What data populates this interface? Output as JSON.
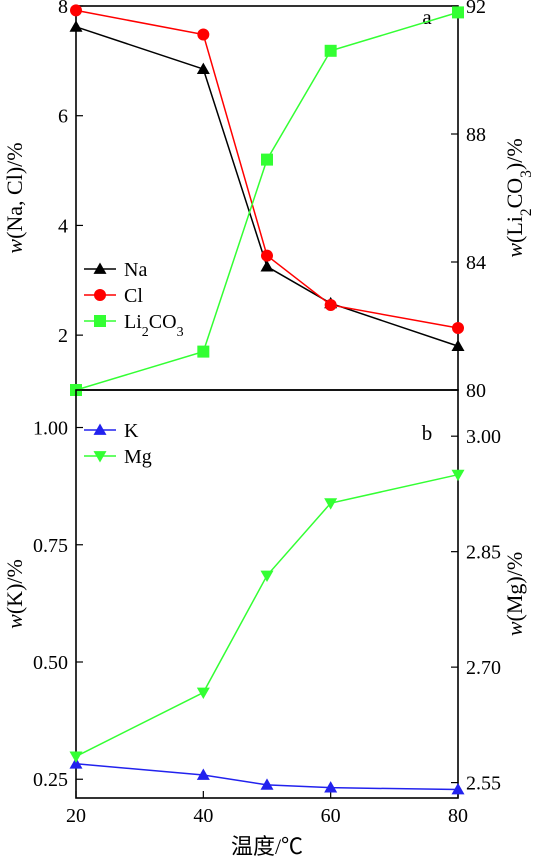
{
  "chart_data": [
    {
      "panel_label": "a",
      "type": "line",
      "x": [
        20,
        40,
        50,
        60,
        80
      ],
      "xlim": [
        20,
        80
      ],
      "ylabel_left": "w(Na, Cl)/%",
      "ylabel_right": "w(Li2CO3)/%",
      "ylim_left": [
        1.0,
        8.0
      ],
      "ylim_right": [
        80,
        92
      ],
      "yticks_left": [
        2,
        4,
        6,
        8
      ],
      "yticks_right": [
        80,
        84,
        88,
        92
      ],
      "series": [
        {
          "name": "Na",
          "axis": "left",
          "marker": "triangle-up",
          "color": "#000000",
          "values": [
            7.62,
            6.85,
            3.25,
            2.58,
            1.8
          ]
        },
        {
          "name": "Cl",
          "axis": "left",
          "marker": "circle",
          "color": "#ff0000",
          "values": [
            7.92,
            7.48,
            3.45,
            2.55,
            2.13
          ]
        },
        {
          "name": "Li2CO3",
          "axis": "right",
          "marker": "square",
          "color": "#33ff33",
          "values": [
            80.0,
            81.2,
            87.2,
            90.6,
            91.8
          ]
        }
      ],
      "legend_placement": "bottom-left"
    },
    {
      "panel_label": "b",
      "type": "line",
      "x": [
        20,
        40,
        50,
        60,
        80
      ],
      "xlim": [
        20,
        80
      ],
      "xticks": [
        20,
        40,
        60,
        80
      ],
      "xlabel": "温度/℃",
      "ylabel_left": "w(K)/%",
      "ylabel_right": "w(Mg)/%",
      "ylim_left": [
        0.21,
        1.08
      ],
      "ylim_right": [
        2.53,
        3.06
      ],
      "yticks_left": [
        "0.25",
        "0.50",
        "0.75",
        "1.00"
      ],
      "yticks_right": [
        "2.55",
        "2.70",
        "2.85",
        "3.00"
      ],
      "series": [
        {
          "name": "K",
          "axis": "left",
          "marker": "triangle-up",
          "color": "#2222ee",
          "values": [
            0.283,
            0.259,
            0.238,
            0.232,
            0.228
          ]
        },
        {
          "name": "Mg",
          "axis": "right",
          "marker": "triangle-down",
          "color": "#33ff33",
          "values": [
            2.584,
            2.667,
            2.819,
            2.913,
            2.95
          ]
        }
      ],
      "legend_placement": "top-left"
    }
  ]
}
